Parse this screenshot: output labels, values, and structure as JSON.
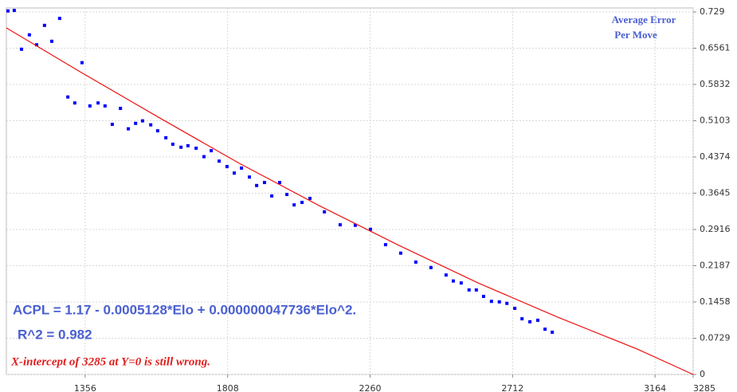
{
  "chart_data": {
    "type": "scatter",
    "title": [
      "Average Error",
      "Per Move"
    ],
    "annotations": [
      "ACPL = 1.17 - 0.0005128*Elo + 0.000000047736*Elo^2.",
      "R^2 = 0.982",
      "X-intercept of 3285 at Y=0 is still wrong."
    ],
    "series": [
      {
        "type": "scatter",
        "color": "#0000ff",
        "x": [
          1111,
          1131,
          1154,
          1179,
          1202,
          1227,
          1250,
          1275,
          1301,
          1323,
          1346,
          1371,
          1397,
          1419,
          1442,
          1468,
          1493,
          1516,
          1538,
          1564,
          1586,
          1612,
          1634,
          1660,
          1682,
          1708,
          1733,
          1756,
          1781,
          1806,
          1829,
          1852,
          1877,
          1900,
          1925,
          1948,
          1973,
          1996,
          2019,
          2044,
          2069,
          2115,
          2165,
          2213,
          2261,
          2309,
          2357,
          2405,
          2453,
          2501,
          2524,
          2549,
          2574,
          2597,
          2620,
          2645,
          2670,
          2694,
          2719,
          2742,
          2767,
          2792,
          2815,
          2838
        ],
        "values": [
          0.731,
          0.732,
          0.654,
          0.683,
          0.663,
          0.702,
          0.67,
          0.716,
          0.558,
          0.546,
          0.627,
          0.54,
          0.546,
          0.54,
          0.503,
          0.535,
          0.494,
          0.505,
          0.51,
          0.502,
          0.49,
          0.476,
          0.463,
          0.457,
          0.46,
          0.455,
          0.438,
          0.45,
          0.429,
          0.418,
          0.405,
          0.415,
          0.397,
          0.38,
          0.386,
          0.359,
          0.386,
          0.362,
          0.341,
          0.346,
          0.354,
          0.327,
          0.301,
          0.3,
          0.292,
          0.261,
          0.244,
          0.226,
          0.215,
          0.2,
          0.188,
          0.184,
          0.17,
          0.17,
          0.157,
          0.147,
          0.146,
          0.143,
          0.133,
          0.112,
          0.106,
          0.109,
          0.091,
          0.085
        ]
      },
      {
        "type": "line",
        "color": "#ee1111",
        "x": [
          1106,
          1339,
          1592,
          1844,
          2097,
          2350,
          2603,
          2856,
          3108,
          3285
        ],
        "values": [
          0.697,
          0.609,
          0.516,
          0.425,
          0.34,
          0.26,
          0.184,
          0.115,
          0.051,
          0
        ]
      }
    ],
    "xlim": [
      1106,
      3285
    ],
    "ylim": [
      0,
      0.737
    ],
    "xticks": [
      1356,
      1808,
      2260,
      2712,
      3164,
      3285
    ],
    "yticks": [
      0,
      0.0729,
      0.1458,
      0.2187,
      0.2916,
      0.3645,
      0.4374,
      0.5103,
      0.5832,
      0.6561,
      0.729
    ],
    "grid": true
  }
}
